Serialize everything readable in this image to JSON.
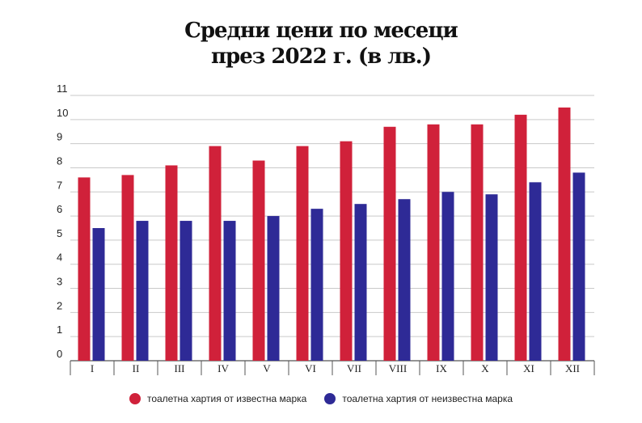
{
  "chart_data": {
    "type": "bar",
    "title": "Средни цени по месеци",
    "subtitle": "през 2022 г. (в лв.)",
    "categories": [
      "I",
      "II",
      "III",
      "IV",
      "V",
      "VI",
      "VII",
      "VIII",
      "IX",
      "X",
      "XI",
      "XII"
    ],
    "series": [
      {
        "name": "тоалетна хартия от известна марка",
        "color": "#d0213a",
        "values": [
          7.6,
          7.7,
          8.1,
          8.9,
          8.3,
          8.9,
          9.1,
          9.7,
          9.8,
          9.8,
          10.2,
          10.5
        ]
      },
      {
        "name": "тоалетна хартия от неизвестна марка",
        "color": "#2e2a96",
        "values": [
          5.5,
          5.8,
          5.8,
          5.8,
          6.0,
          6.3,
          6.5,
          6.7,
          7.0,
          6.9,
          7.4,
          7.8
        ]
      }
    ],
    "ylim": [
      0,
      11
    ],
    "yticks": [
      0,
      1,
      2,
      3,
      4,
      5,
      6,
      7,
      8,
      9,
      10,
      11
    ],
    "grid": true,
    "legend_position": "bottom"
  }
}
